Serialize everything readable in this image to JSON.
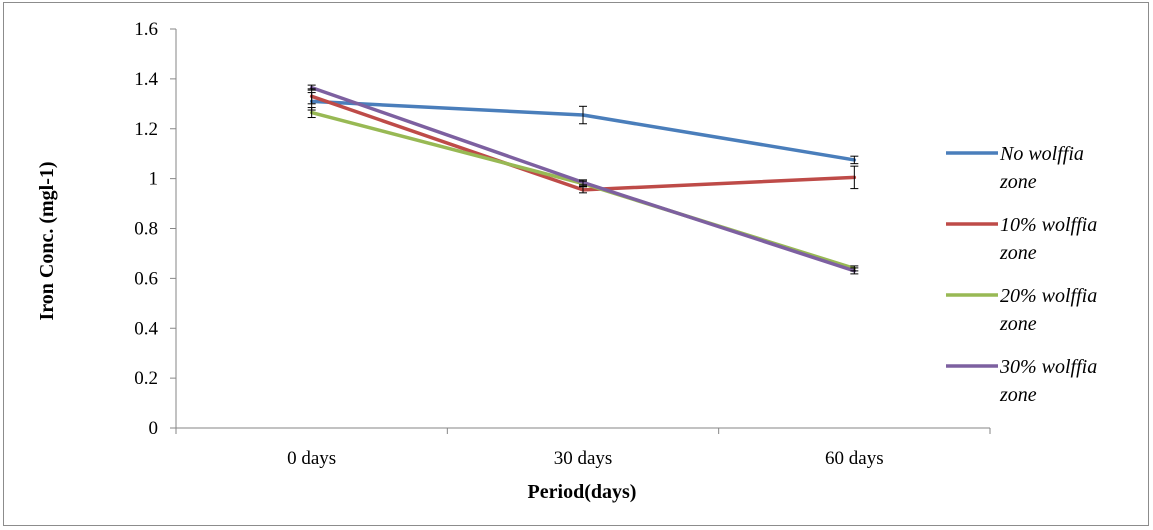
{
  "chart_data": {
    "type": "line",
    "categories": [
      "0 days",
      "30 days",
      "60 days"
    ],
    "xlabel": "Period(days)",
    "ylabel": "Iron Conc. (mgl-1)",
    "ylim": [
      0,
      1.6
    ],
    "yticks": [
      "0",
      "0.2",
      "0.4",
      "0.6",
      "0.8",
      "1",
      "1.2",
      "1.4",
      "1.6"
    ],
    "grid": false,
    "legend_position": "right",
    "series": [
      {
        "name": "No wolffia zone",
        "legend_lines": [
          "No wolffia",
          "zone"
        ],
        "color": "#4a7ebb",
        "values": [
          1.31,
          1.255,
          1.075
        ],
        "errors": [
          0.035,
          0.035,
          0.015
        ]
      },
      {
        "name": "10% wolffia zone",
        "legend_lines": [
          "10% wolffia",
          "zone"
        ],
        "color": "#be4b48",
        "values": [
          1.33,
          0.955,
          1.005
        ],
        "errors": [
          0.03,
          0.012,
          0.045
        ]
      },
      {
        "name": "20% wolffia zone",
        "legend_lines": [
          "20% wolffia",
          "zone"
        ],
        "color": "#98b954",
        "values": [
          1.265,
          0.98,
          0.64
        ],
        "errors": [
          0.02,
          0.01,
          0.01
        ]
      },
      {
        "name": "30% wolffia zone",
        "legend_lines": [
          "30% wolffia",
          "zone"
        ],
        "color": "#7d60a0",
        "values": [
          1.365,
          0.985,
          0.63
        ],
        "errors": [
          0.01,
          0.01,
          0.012
        ]
      }
    ]
  }
}
